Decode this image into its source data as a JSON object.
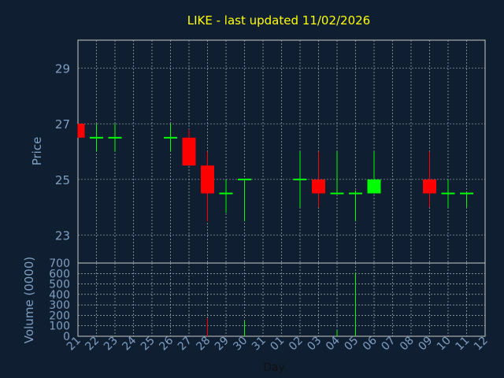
{
  "chart_data": [
    {
      "type": "candlestick",
      "title": "LIKE - last updated 11/02/2026",
      "ylabel": "Price",
      "ylim": [
        22,
        30
      ],
      "yticks": [
        23,
        25,
        27,
        29
      ],
      "grid": true,
      "x_categories": [
        "21",
        "22",
        "23",
        "24",
        "25",
        "26",
        "27",
        "28",
        "29",
        "30",
        "31",
        "01",
        "02",
        "03",
        "04",
        "05",
        "06",
        "07",
        "08",
        "09",
        "10",
        "11",
        "12"
      ],
      "candles": [
        {
          "day": "21",
          "open": 27.0,
          "high": 27.0,
          "low": 26.5,
          "close": 26.5
        },
        {
          "day": "22",
          "open": 26.5,
          "high": 27.0,
          "low": 26.0,
          "close": 26.5
        },
        {
          "day": "23",
          "open": 26.5,
          "high": 27.0,
          "low": 26.0,
          "close": 26.5
        },
        {
          "day": "26",
          "open": 26.5,
          "high": 27.0,
          "low": 26.0,
          "close": 26.5
        },
        {
          "day": "27",
          "open": 26.5,
          "high": 26.8,
          "low": 25.5,
          "close": 25.5
        },
        {
          "day": "28",
          "open": 25.5,
          "high": 26.0,
          "low": 23.5,
          "close": 24.5
        },
        {
          "day": "29",
          "open": 24.5,
          "high": 25.0,
          "low": 23.8,
          "close": 24.5
        },
        {
          "day": "30",
          "open": 25.0,
          "high": 25.0,
          "low": 23.5,
          "close": 25.0
        },
        {
          "day": "02",
          "open": 25.0,
          "high": 26.0,
          "low": 24.0,
          "close": 25.0
        },
        {
          "day": "03",
          "open": 25.0,
          "high": 26.0,
          "low": 24.0,
          "close": 24.5
        },
        {
          "day": "04",
          "open": 24.5,
          "high": 26.0,
          "low": 24.5,
          "close": 24.5
        },
        {
          "day": "05",
          "open": 24.5,
          "high": 24.6,
          "low": 23.5,
          "close": 24.5
        },
        {
          "day": "06",
          "open": 24.5,
          "high": 26.0,
          "low": 24.5,
          "close": 25.0
        },
        {
          "day": "09",
          "open": 25.0,
          "high": 26.0,
          "low": 24.0,
          "close": 24.5
        },
        {
          "day": "10",
          "open": 24.5,
          "high": 25.0,
          "low": 24.0,
          "close": 24.5
        },
        {
          "day": "11",
          "open": 24.5,
          "high": 24.5,
          "low": 24.0,
          "close": 24.5
        }
      ]
    },
    {
      "type": "bar",
      "xlabel": "Day",
      "ylabel": "Volume (0000)",
      "ylim": [
        0,
        700
      ],
      "yticks": [
        0,
        100,
        200,
        300,
        400,
        500,
        600,
        700
      ],
      "grid": true,
      "bars": [
        {
          "day": "28",
          "value": 170,
          "direction": "down"
        },
        {
          "day": "30",
          "value": 150,
          "direction": "up"
        },
        {
          "day": "04",
          "value": 60,
          "direction": "up"
        },
        {
          "day": "05",
          "value": 610,
          "direction": "up"
        }
      ]
    }
  ],
  "colors": {
    "background": "#0f1f31",
    "plot_background": "#0f1f31",
    "axis_text": "#7f9fc3",
    "title": "#ffff00",
    "grid": "#c8c8c8",
    "up": "#00ff00",
    "down": "#ff0000"
  }
}
